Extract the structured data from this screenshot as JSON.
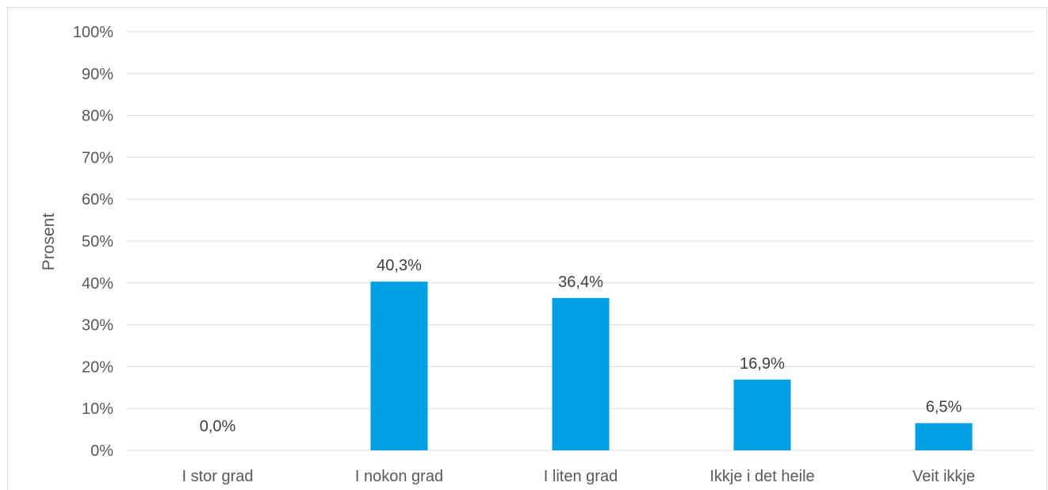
{
  "chart_data": {
    "type": "bar",
    "categories": [
      "I stor grad",
      "I nokon grad",
      "I liten grad",
      "Ikkje i det heile",
      "Veit ikkje"
    ],
    "values": [
      0.0,
      40.3,
      36.4,
      16.9,
      6.5
    ],
    "data_labels": [
      "0,0%",
      "40,3%",
      "36,4%",
      "16,9%",
      "6,5%"
    ],
    "title": "",
    "xlabel": "",
    "ylabel": "Prosent",
    "ylim": [
      0,
      100
    ],
    "yticks": [
      0,
      10,
      20,
      30,
      40,
      50,
      60,
      70,
      80,
      90,
      100
    ],
    "ytick_labels": [
      "0%",
      "10%",
      "20%",
      "30%",
      "40%",
      "50%",
      "60%",
      "70%",
      "80%",
      "90%",
      "100%"
    ],
    "grid": true,
    "legend": "none",
    "bar_color": "#009fe3",
    "grid_color": "#d9d9d9"
  }
}
